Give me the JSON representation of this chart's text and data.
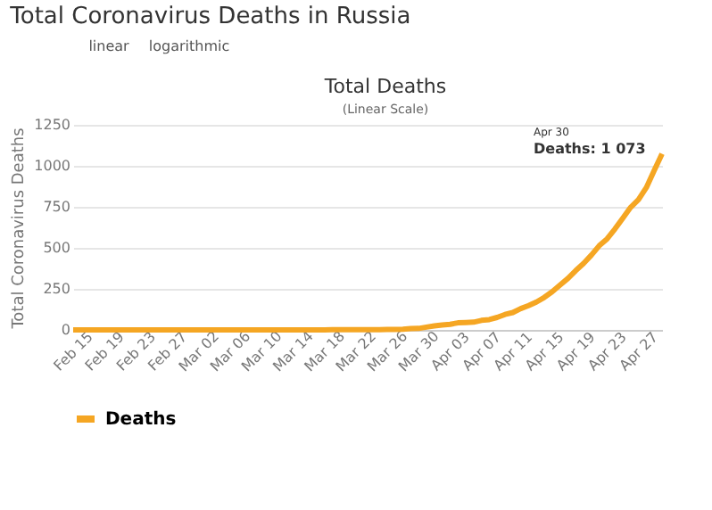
{
  "chart_data": {
    "type": "line",
    "title": "Total Coronavirus Deaths in Russia",
    "subtitle": "Total Deaths",
    "annotations": [
      "linear",
      "logarithmic",
      "(Linear Scale)",
      "Apr 30",
      "Deaths: 1 073"
    ],
    "categories": [
      "Feb 15",
      null,
      null,
      null,
      "Feb 19",
      null,
      null,
      null,
      "Feb 23",
      null,
      null,
      null,
      "Feb 27",
      null,
      null,
      null,
      "Mar 02",
      null,
      null,
      null,
      "Mar 06",
      null,
      null,
      null,
      "Mar 10",
      null,
      null,
      null,
      "Mar 14",
      null,
      null,
      null,
      "Mar 18",
      null,
      null,
      null,
      "Mar 22",
      null,
      null,
      null,
      "Mar 26",
      null,
      null,
      null,
      "Mar 30",
      null,
      null,
      null,
      "Apr 03",
      null,
      null,
      null,
      "Apr 07",
      null,
      null,
      null,
      "Apr 11",
      null,
      null,
      null,
      "Apr 15",
      null,
      null,
      null,
      "Apr 19",
      null,
      null,
      null,
      "Apr 23",
      null,
      null,
      null,
      "Apr 27",
      null,
      null,
      null
    ],
    "series": [
      {
        "name": "Deaths",
        "color": "#f5a623",
        "values": [
          0,
          0,
          0,
          0,
          0,
          0,
          0,
          0,
          0,
          0,
          0,
          0,
          0,
          0,
          0,
          0,
          0,
          0,
          0,
          0,
          0,
          0,
          0,
          0,
          0,
          0,
          0,
          0,
          0,
          0,
          0,
          0,
          0,
          1,
          1,
          1,
          1,
          1,
          1,
          1,
          3,
          3,
          4,
          8,
          9,
          17,
          24,
          30,
          34,
          43,
          45,
          47,
          58,
          63,
          76,
          94,
          106,
          130,
          148,
          170,
          198,
          232,
          273,
          313,
          361,
          405,
          456,
          513,
          555,
          615,
          681,
          747,
          794,
          867,
          972,
          1073
        ]
      }
    ],
    "ylabel": "Total Coronavirus Deaths",
    "ylim": [
      0,
      1250
    ],
    "yticks": [
      0,
      250,
      500,
      750,
      {
        "value": 1000,
        "label": "1000"
      },
      {
        "value": 1250,
        "label": "1250"
      }
    ],
    "grid": "y",
    "legend": "bottom",
    "marker": "none",
    "line_style": "solid"
  }
}
